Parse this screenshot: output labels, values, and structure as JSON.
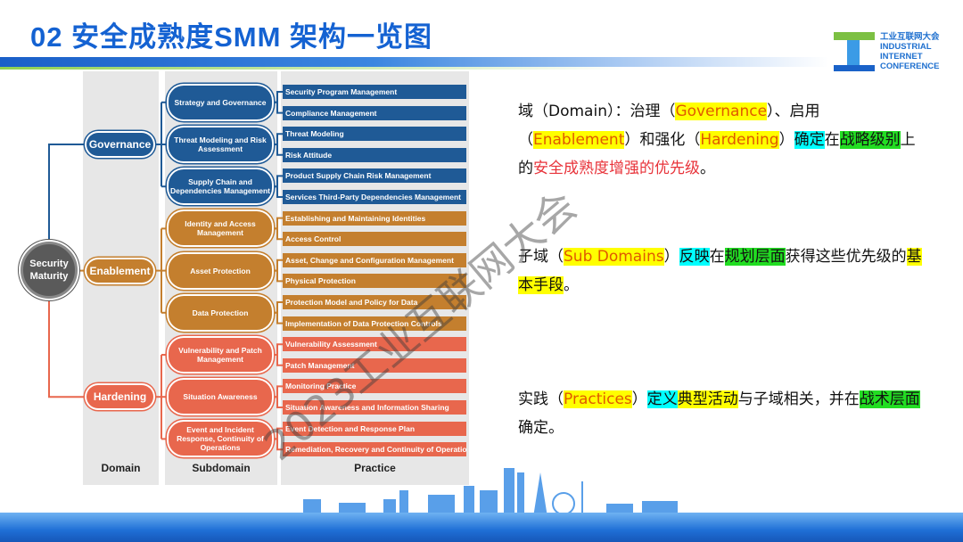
{
  "header": {
    "title": "02  安全成熟度SMM  架构一览图"
  },
  "logo": {
    "lines": [
      "工业互联网大会",
      "INDUSTRIAL",
      "INTERNET",
      "CONFERENCE"
    ]
  },
  "diagram": {
    "root": "Security Maturity",
    "colors": {
      "governance": "#1f5a96",
      "enablement": "#c47f2e",
      "hardening": "#e8674d"
    },
    "column_labels": {
      "domain": "Domain",
      "subdomain": "Subdomain",
      "practice": "Practice"
    },
    "domains": [
      {
        "name": "Governance",
        "color_key": "governance",
        "subdomains": [
          {
            "name": "Strategy and Governance",
            "practices": [
              "Security Program Management",
              "Compliance Management"
            ]
          },
          {
            "name": "Threat Modeling and Risk Assessment",
            "practices": [
              "Threat Modeling",
              "Risk Attitude"
            ]
          },
          {
            "name": "Supply Chain and Dependencies Management",
            "practices": [
              "Product Supply Chain Risk Management",
              "Services Third-Party Dependencies Management"
            ]
          }
        ]
      },
      {
        "name": "Enablement",
        "color_key": "enablement",
        "subdomains": [
          {
            "name": "Identity and Access Management",
            "practices": [
              "Establishing and Maintaining Identities",
              "Access Control"
            ]
          },
          {
            "name": "Asset Protection",
            "practices": [
              "Asset, Change and Configuration Management",
              "Physical Protection"
            ]
          },
          {
            "name": "Data Protection",
            "practices": [
              "Protection Model and Policy for Data",
              "Implementation of Data Protection Controls"
            ]
          }
        ]
      },
      {
        "name": "Hardening",
        "color_key": "hardening",
        "subdomains": [
          {
            "name": "Vulnerability and Patch Management",
            "practices": [
              "Vulnerability Assessment",
              "Patch Management"
            ]
          },
          {
            "name": "Situation Awareness",
            "practices": [
              "Monitoring Practice",
              "Situation Awareness and Information Sharing"
            ]
          },
          {
            "name": "Event and Incident Response, Continuity of Operations",
            "practices": [
              "Event Detection and Response Plan",
              "Remediation, Recovery and Continuity of Operations"
            ]
          }
        ]
      }
    ]
  },
  "paragraphs": [
    [
      {
        "t": "域（Domain）：治理（"
      },
      {
        "t": "Governance",
        "s": "hl-yellow"
      },
      {
        "t": "）、启用（"
      },
      {
        "t": "Enablement",
        "s": "hl-yellow"
      },
      {
        "t": "）和强化（"
      },
      {
        "t": "Hardening",
        "s": "hl-yellow"
      },
      {
        "t": "）"
      },
      {
        "t": "确定",
        "s": "hl-cyan"
      },
      {
        "t": "在"
      },
      {
        "t": "战略级别",
        "s": "hl-green"
      },
      {
        "t": "上的"
      },
      {
        "t": "安全成熟度增强的优先级",
        "s": "red"
      },
      {
        "t": "。"
      }
    ],
    [
      {
        "t": "子域（"
      },
      {
        "t": "Sub Domains",
        "s": "hl-yellow"
      },
      {
        "t": "）"
      },
      {
        "t": "反映",
        "s": "hl-cyan"
      },
      {
        "t": "在"
      },
      {
        "t": "规划层面",
        "s": "hl-green"
      },
      {
        "t": "获得这些优先级的"
      },
      {
        "t": "基本手段",
        "s": "hl-yellowb"
      },
      {
        "t": "。"
      }
    ],
    [
      {
        "t": "实践（"
      },
      {
        "t": "Practices",
        "s": "hl-yellow"
      },
      {
        "t": "）"
      },
      {
        "t": "定义",
        "s": "hl-cyan"
      },
      {
        "t": "典型活动",
        "s": "hl-yellowb"
      },
      {
        "t": "与子域相关，并在"
      },
      {
        "t": "战术层面",
        "s": "hl-green"
      },
      {
        "t": "确定。"
      }
    ]
  ],
  "watermark": "2023工业互联网大会"
}
